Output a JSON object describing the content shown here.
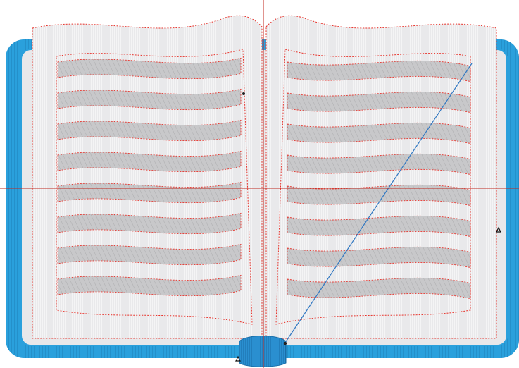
{
  "design": {
    "subject": "open-book",
    "thread_colors": {
      "cover_fill": "#2aa0dc",
      "cover_dark": "#1f7fb8",
      "page_fill": "#e8e8ea",
      "page_stitch": "#ffffff",
      "text_band": "#c6c6c8",
      "text_band_stitch": "#adadaf",
      "outline_stitch": "#e8322a",
      "guide_line": "#c0291f",
      "travel_line": "#2f77c2",
      "spine_fill": "#2a8fd0",
      "marker": "#222222"
    },
    "text_lines_per_page": 8
  }
}
